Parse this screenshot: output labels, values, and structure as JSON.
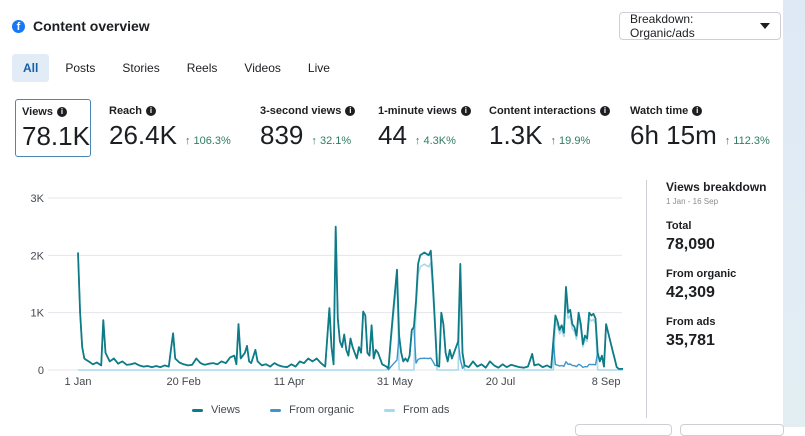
{
  "header": {
    "icon": "facebook-icon",
    "title": "Content overview"
  },
  "breakdown": {
    "label": "Breakdown: Organic/ads",
    "icon": "caret-down-icon"
  },
  "tabs": [
    {
      "label": "All",
      "active": true
    },
    {
      "label": "Posts",
      "active": false
    },
    {
      "label": "Stories",
      "active": false
    },
    {
      "label": "Reels",
      "active": false
    },
    {
      "label": "Videos",
      "active": false
    },
    {
      "label": "Live",
      "active": false
    }
  ],
  "metrics": [
    {
      "label": "Views",
      "value": "78.1K",
      "change": "",
      "active": true
    },
    {
      "label": "Reach",
      "value": "26.4K",
      "change": "↑ 106.3%"
    },
    {
      "label": "3-second views",
      "value": "839",
      "change": "↑ 32.1%"
    },
    {
      "label": "1-minute views",
      "value": "44",
      "change": "↑ 4.3K%"
    },
    {
      "label": "Content interactions",
      "value": "1.3K",
      "change": "↑ 19.9%"
    },
    {
      "label": "Watch time",
      "value": "6h 15m",
      "change": "↑ 112.3%"
    }
  ],
  "side": {
    "title": "Views breakdown",
    "date_range": "1 Jan - 16 Sep",
    "total_label": "Total",
    "total_value": "78,090",
    "organic_label": "From organic",
    "organic_value": "42,309",
    "ads_label": "From ads",
    "ads_value": "35,781"
  },
  "colors": {
    "views": "#0e7c86",
    "organic": "#3d95ce",
    "ads": "#a7d8ec",
    "positive": "#2f7d62",
    "accent": "#1877f2"
  },
  "chart_data": {
    "type": "line",
    "title": "",
    "xlabel": "",
    "ylabel": "",
    "ylim": [
      0,
      3000
    ],
    "yticks": [
      0,
      1000,
      2000,
      3000
    ],
    "ytick_labels": [
      "0",
      "1K",
      "2K",
      "3K"
    ],
    "x_start": "1 Jan",
    "x_end": "16 Sep",
    "n_days": 259,
    "xticks": [
      {
        "day": 0,
        "label": "1 Jan"
      },
      {
        "day": 50,
        "label": "20 Feb"
      },
      {
        "day": 100,
        "label": "11 Apr"
      },
      {
        "day": 150,
        "label": "31 May"
      },
      {
        "day": 200,
        "label": "20 Jul"
      },
      {
        "day": 250,
        "label": "8 Sep"
      }
    ],
    "grid": true,
    "legend": "bottom",
    "series": [
      {
        "name": "Views",
        "keypoints": [
          [
            0,
            2050
          ],
          [
            1,
            1000
          ],
          [
            2,
            400
          ],
          [
            3,
            200
          ],
          [
            5,
            150
          ],
          [
            7,
            100
          ],
          [
            9,
            130
          ],
          [
            11,
            80
          ],
          [
            12,
            870
          ],
          [
            13,
            300
          ],
          [
            15,
            150
          ],
          [
            17,
            200
          ],
          [
            19,
            110
          ],
          [
            21,
            150
          ],
          [
            23,
            90
          ],
          [
            25,
            100
          ],
          [
            27,
            120
          ],
          [
            29,
            80
          ],
          [
            31,
            60
          ],
          [
            33,
            70
          ],
          [
            35,
            50
          ],
          [
            37,
            70
          ],
          [
            39,
            50
          ],
          [
            41,
            80
          ],
          [
            43,
            60
          ],
          [
            45,
            640
          ],
          [
            46,
            200
          ],
          [
            48,
            130
          ],
          [
            50,
            100
          ],
          [
            52,
            80
          ],
          [
            54,
            90
          ],
          [
            56,
            200
          ],
          [
            58,
            120
          ],
          [
            60,
            90
          ],
          [
            62,
            110
          ],
          [
            64,
            120
          ],
          [
            66,
            100
          ],
          [
            68,
            150
          ],
          [
            70,
            120
          ],
          [
            72,
            220
          ],
          [
            74,
            250
          ],
          [
            75,
            100
          ],
          [
            76,
            800
          ],
          [
            77,
            200
          ],
          [
            79,
            300
          ],
          [
            80,
            420
          ],
          [
            81,
            150
          ],
          [
            82,
            120
          ],
          [
            84,
            350
          ],
          [
            85,
            150
          ],
          [
            87,
            80
          ],
          [
            89,
            100
          ],
          [
            91,
            60
          ],
          [
            93,
            120
          ],
          [
            95,
            80
          ],
          [
            97,
            60
          ],
          [
            99,
            50
          ],
          [
            101,
            100
          ],
          [
            103,
            60
          ],
          [
            105,
            150
          ],
          [
            107,
            120
          ],
          [
            109,
            200
          ],
          [
            111,
            150
          ],
          [
            113,
            200
          ],
          [
            115,
            120
          ],
          [
            117,
            60
          ],
          [
            119,
            1080
          ],
          [
            120,
            400
          ],
          [
            121,
            100
          ],
          [
            122,
            2500
          ],
          [
            123,
            900
          ],
          [
            124,
            500
          ],
          [
            125,
            400
          ],
          [
            126,
            620
          ],
          [
            127,
            350
          ],
          [
            128,
            250
          ],
          [
            129,
            550
          ],
          [
            130,
            400
          ],
          [
            131,
            300
          ],
          [
            132,
            200
          ],
          [
            133,
            400
          ],
          [
            134,
            300
          ],
          [
            135,
            1020
          ],
          [
            136,
            950
          ],
          [
            137,
            300
          ],
          [
            138,
            250
          ],
          [
            139,
            780
          ],
          [
            140,
            200
          ],
          [
            141,
            350
          ],
          [
            142,
            300
          ],
          [
            143,
            200
          ],
          [
            144,
            100
          ],
          [
            145,
            80
          ],
          [
            147,
            40
          ],
          [
            148,
            500
          ],
          [
            150,
            1350
          ],
          [
            151,
            1750
          ],
          [
            152,
            600
          ],
          [
            153,
            300
          ],
          [
            154,
            150
          ],
          [
            155,
            200
          ],
          [
            156,
            150
          ],
          [
            157,
            250
          ],
          [
            158,
            700
          ],
          [
            159,
            750
          ],
          [
            160,
            1200
          ],
          [
            161,
            1850
          ],
          [
            162,
            2000
          ],
          [
            164,
            2050
          ],
          [
            166,
            2000
          ],
          [
            167,
            2080
          ],
          [
            168,
            1500
          ],
          [
            169,
            800
          ],
          [
            170,
            80
          ],
          [
            171,
            60
          ],
          [
            172,
            1000
          ],
          [
            173,
            800
          ],
          [
            174,
            300
          ],
          [
            175,
            150
          ],
          [
            176,
            350
          ],
          [
            177,
            200
          ],
          [
            178,
            300
          ],
          [
            179,
            400
          ],
          [
            180,
            500
          ],
          [
            181,
            1850
          ],
          [
            182,
            300
          ],
          [
            183,
            80
          ],
          [
            185,
            50
          ],
          [
            187,
            150
          ],
          [
            189,
            60
          ],
          [
            191,
            100
          ],
          [
            193,
            40
          ],
          [
            195,
            150
          ],
          [
            197,
            80
          ],
          [
            199,
            40
          ],
          [
            201,
            100
          ],
          [
            203,
            50
          ],
          [
            205,
            90
          ],
          [
            207,
            70
          ],
          [
            209,
            50
          ],
          [
            211,
            40
          ],
          [
            213,
            60
          ],
          [
            215,
            280
          ],
          [
            216,
            80
          ],
          [
            218,
            100
          ],
          [
            220,
            50
          ],
          [
            222,
            80
          ],
          [
            224,
            40
          ],
          [
            226,
            950
          ],
          [
            227,
            850
          ],
          [
            228,
            700
          ],
          [
            229,
            780
          ],
          [
            230,
            650
          ],
          [
            231,
            1450
          ],
          [
            232,
            1000
          ],
          [
            233,
            1050
          ],
          [
            234,
            800
          ],
          [
            235,
            750
          ],
          [
            236,
            600
          ],
          [
            237,
            1000
          ],
          [
            238,
            800
          ],
          [
            239,
            450
          ],
          [
            240,
            600
          ],
          [
            241,
            550
          ],
          [
            242,
            1000
          ],
          [
            243,
            950
          ],
          [
            244,
            980
          ],
          [
            245,
            900
          ],
          [
            246,
            300
          ],
          [
            247,
            150
          ],
          [
            248,
            250
          ],
          [
            249,
            60
          ],
          [
            250,
            800
          ]
        ],
        "note": "keypoints are [day_index, value]; day_index 0 = 1 Jan"
      },
      {
        "name": "From organic"
      },
      {
        "name": "From ads"
      }
    ]
  }
}
